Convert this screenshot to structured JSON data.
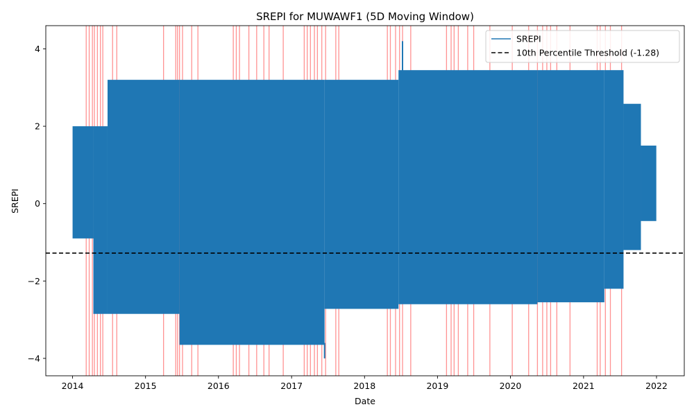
{
  "chart_data": {
    "type": "line",
    "title": "SREPI for MUWAWF1 (5D Moving Window)",
    "xlabel": "Date",
    "ylabel": "SREPI",
    "x_ticks": [
      "2014",
      "2015",
      "2016",
      "2017",
      "2018",
      "2019",
      "2020",
      "2021",
      "2022"
    ],
    "y_ticks": [
      4,
      2,
      0,
      -2,
      -4
    ],
    "xlim": [
      "2013-08-20",
      "2022-05-20"
    ],
    "ylim": [
      -4.45,
      4.6
    ],
    "grid": false,
    "legend_position": "top-right",
    "colors": {
      "series": "#1f77b4",
      "threshold": "#000000",
      "shading": "#ff7f7f"
    },
    "series": [
      {
        "name": "SREPI",
        "envelope": [
          {
            "start": "2014-01-01",
            "end": "2014-04-15",
            "min": -0.9,
            "max": 2.0
          },
          {
            "start": "2014-04-15",
            "end": "2014-06-25",
            "min": -2.85,
            "max": 2.0
          },
          {
            "start": "2014-06-25",
            "end": "2015-06-20",
            "min": -2.85,
            "max": 3.2
          },
          {
            "start": "2015-06-20",
            "end": "2017-06-15",
            "min": -3.65,
            "max": 3.2
          },
          {
            "start": "2017-06-15",
            "end": "2018-06-20",
            "min": -2.72,
            "max": 3.2
          },
          {
            "start": "2018-06-20",
            "end": "2020-05-15",
            "min": -2.6,
            "max": 3.45
          },
          {
            "start": "2020-05-15",
            "end": "2021-04-15",
            "min": -2.55,
            "max": 3.45
          },
          {
            "start": "2021-04-15",
            "end": "2021-07-20",
            "min": -2.2,
            "max": 3.45
          },
          {
            "start": "2021-07-20",
            "end": "2021-10-15",
            "min": -1.2,
            "max": 2.58
          },
          {
            "start": "2021-10-15",
            "end": "2021-12-31",
            "min": -0.45,
            "max": 1.5
          }
        ],
        "extremes": [
          {
            "date": "2017-06-15",
            "min": -4.0
          },
          {
            "date": "2018-07-10",
            "max": 4.2
          }
        ]
      }
    ],
    "threshold": {
      "name": "10th Percentile Threshold (-1.28)",
      "value": -1.28
    },
    "shaded_periods": [
      "2014-03-10",
      "2014-03-25",
      "2014-04-10",
      "2014-04-20",
      "2014-05-05",
      "2014-05-20",
      "2014-06-01",
      "2014-07-20",
      "2014-08-10",
      "2015-04-01",
      "2015-06-01",
      "2015-06-10",
      "2015-06-20",
      "2015-07-05",
      "2015-08-20",
      "2015-09-20",
      "2016-03-15",
      "2016-03-30",
      "2016-04-15",
      "2016-06-01",
      "2016-07-10",
      "2016-08-15",
      "2016-09-10",
      "2016-11-20",
      "2017-03-05",
      "2017-03-20",
      "2017-04-05",
      "2017-04-25",
      "2017-05-10",
      "2017-06-01",
      "2017-06-20",
      "2017-08-10",
      "2017-08-25",
      "2018-04-25",
      "2018-05-10",
      "2018-06-05",
      "2018-06-25",
      "2018-07-10",
      "2018-08-20",
      "2019-02-15",
      "2019-03-10",
      "2019-03-25",
      "2019-04-15",
      "2019-06-01",
      "2019-07-01",
      "2019-09-20",
      "2020-01-10",
      "2020-04-01",
      "2020-05-15",
      "2020-06-10",
      "2020-07-01",
      "2020-07-20",
      "2020-08-20",
      "2020-10-25",
      "2021-03-10",
      "2021-03-25",
      "2021-04-20",
      "2021-05-15",
      "2021-07-10"
    ]
  }
}
